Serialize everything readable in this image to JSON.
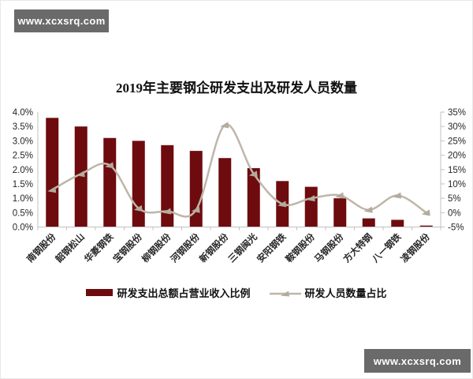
{
  "watermarks": {
    "top_left": "www.xcxsrq.com",
    "bottom_right": "www.xcxsrq.com"
  },
  "chart_data": {
    "type": "bar",
    "subtype": "combo-bar-line-dual-axis",
    "title": "2019年主要钢企研发支出及研发人员数量",
    "categories": [
      "南钢股份",
      "韶钢松山",
      "华菱钢铁",
      "宝钢股份",
      "柳钢股份",
      "河钢股份",
      "新钢股份",
      "三钢闽光",
      "安阳钢铁",
      "鞍钢股份",
      "马钢股份",
      "方大特钢",
      "八一钢铁",
      "凌钢股份"
    ],
    "series": [
      {
        "name": "研发支出总额占营业收入比例",
        "type": "bar",
        "axis": "left",
        "unit": "%",
        "values": [
          3.8,
          3.5,
          3.1,
          3.0,
          2.85,
          2.65,
          2.4,
          2.05,
          1.6,
          1.4,
          1.0,
          0.3,
          0.25,
          0.05
        ]
      },
      {
        "name": "研发人员数量占比",
        "type": "line",
        "axis": "right",
        "unit": "%",
        "smooth": true,
        "marker": "triangle",
        "values": [
          8,
          13.5,
          16.5,
          1.5,
          0.5,
          1,
          30.5,
          13.5,
          3,
          5,
          6,
          1,
          6,
          0
        ]
      }
    ],
    "left_axis": {
      "min": 0,
      "max": 4,
      "step": 0.5,
      "tick_labels": [
        "0.0%",
        "0.5%",
        "1.0%",
        "1.5%",
        "2.0%",
        "2.5%",
        "3.0%",
        "3.5%",
        "4.0%"
      ]
    },
    "right_axis": {
      "min": -5,
      "max": 35,
      "step": 5,
      "tick_labels": [
        "-5%",
        "0%",
        "5%",
        "10%",
        "15%",
        "20%",
        "25%",
        "30%",
        "35%"
      ]
    },
    "grid": false,
    "legend_position": "bottom",
    "colors": {
      "bar": "#6E0B0E",
      "line": "#BEB6A9",
      "marker": "#B3AB9D",
      "axis": "#C0C0C0",
      "tick_label": "#262626",
      "category_label": "#262626"
    }
  }
}
